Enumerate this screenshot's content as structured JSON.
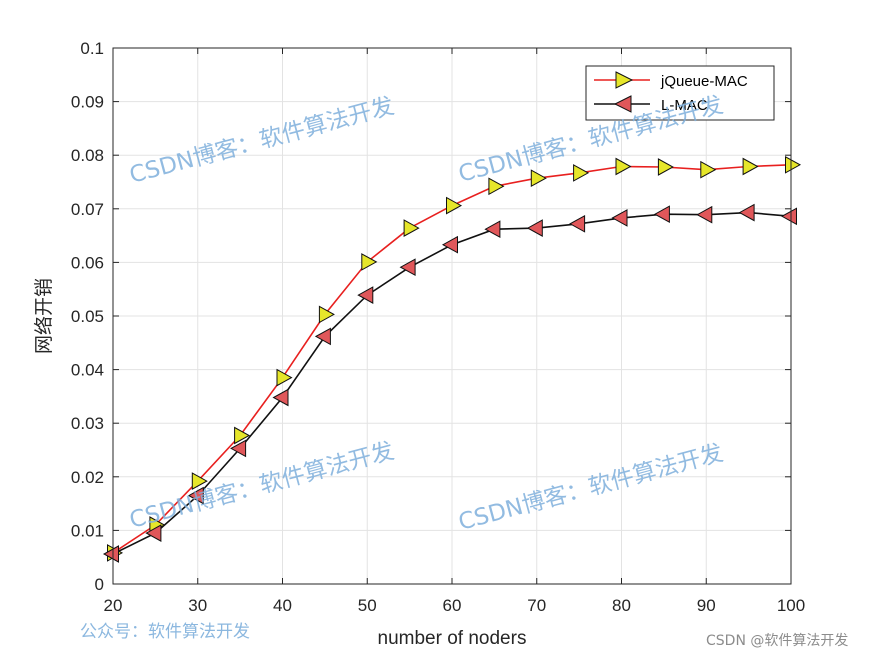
{
  "chart_data": {
    "type": "line",
    "xlabel": "number of noders",
    "ylabel": "网络开销",
    "xlim": [
      20,
      100
    ],
    "ylim": [
      0,
      0.1
    ],
    "xticks": [
      "20",
      "30",
      "40",
      "50",
      "60",
      "70",
      "80",
      "90",
      "100"
    ],
    "yticks": [
      "0",
      "0.01",
      "0.02",
      "0.03",
      "0.04",
      "0.05",
      "0.06",
      "0.07",
      "0.08",
      "0.09",
      "0.1"
    ],
    "grid": true,
    "legend_position": "top-right",
    "x": [
      20,
      25,
      30,
      35,
      40,
      45,
      50,
      55,
      60,
      65,
      70,
      75,
      80,
      85,
      90,
      95,
      100
    ],
    "series": [
      {
        "name": "jQueue-MAC",
        "color": "#e8201f",
        "marker": "right-triangle",
        "marker_fill": "#e6e62a",
        "values": [
          0.0058,
          0.011,
          0.0192,
          0.0277,
          0.0385,
          0.0503,
          0.0601,
          0.0664,
          0.0706,
          0.0742,
          0.0757,
          0.0767,
          0.0779,
          0.0778,
          0.0773,
          0.0779,
          0.0782
        ]
      },
      {
        "name": "L-MAC",
        "color": "#111111",
        "marker": "left-triangle",
        "marker_fill": "#e0575a",
        "values": [
          0.0056,
          0.0095,
          0.0165,
          0.0253,
          0.0348,
          0.0462,
          0.0539,
          0.0591,
          0.0633,
          0.0662,
          0.0664,
          0.0672,
          0.0683,
          0.069,
          0.0689,
          0.0693,
          0.0686
        ]
      }
    ]
  },
  "watermarks": [
    "CSDN博客：软件算法开发",
    "CSDN博客：软件算法开发",
    "CSDN博客：软件算法开发",
    "CSDN博客：软件算法开发",
    "公众号：软件算法开发",
    "CSDN @软件算法开发"
  ]
}
